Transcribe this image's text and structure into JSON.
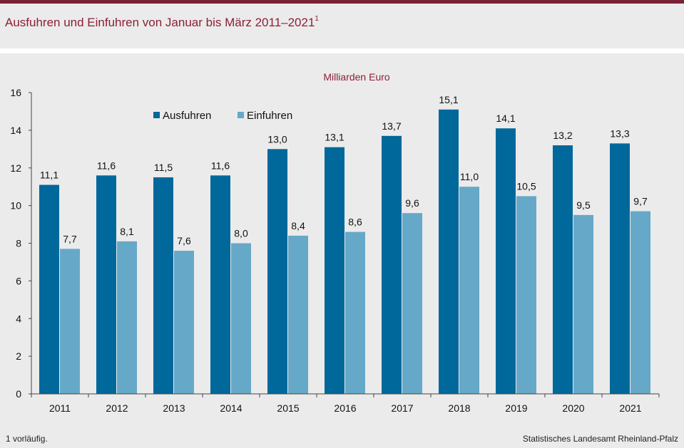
{
  "header": {
    "title": "Ausfuhren und Einfuhren von Januar bis März 2011–2021",
    "title_footnote_mark": "1"
  },
  "footer": {
    "footnote": "1 vorläufig.",
    "source": "Statistisches Landesamt Rheinland-Pfalz"
  },
  "colors": {
    "ausfuhren": "#00689b",
    "einfuhren": "#66a8c8",
    "accent": "#8c1f35"
  },
  "chart_data": {
    "type": "bar",
    "unit_label": "Milliarden Euro",
    "categories": [
      "2011",
      "2012",
      "2013",
      "2014",
      "2015",
      "2016",
      "2017",
      "2018",
      "2019",
      "2020",
      "2021"
    ],
    "series": [
      {
        "name": "Ausfuhren",
        "values": [
          11.1,
          11.6,
          11.5,
          11.6,
          13.0,
          13.1,
          13.7,
          15.1,
          14.1,
          13.2,
          13.3
        ],
        "labels": [
          "11,1",
          "11,6",
          "11,5",
          "11,6",
          "13,0",
          "13,1",
          "13,7",
          "15,1",
          "14,1",
          "13,2",
          "13,3"
        ]
      },
      {
        "name": "Einfuhren",
        "values": [
          7.7,
          8.1,
          7.6,
          8.0,
          8.4,
          8.6,
          9.6,
          11.0,
          10.5,
          9.5,
          9.7
        ],
        "labels": [
          "7,7",
          "8,1",
          "7,6",
          "8,0",
          "8,4",
          "8,6",
          "9,6",
          "11,0",
          "10,5",
          "9,5",
          "9,7"
        ]
      }
    ],
    "yticks": [
      0,
      2,
      4,
      6,
      8,
      10,
      12,
      14,
      16
    ],
    "ylim": [
      0,
      16
    ],
    "grid": false,
    "legend_position": "top-left"
  }
}
